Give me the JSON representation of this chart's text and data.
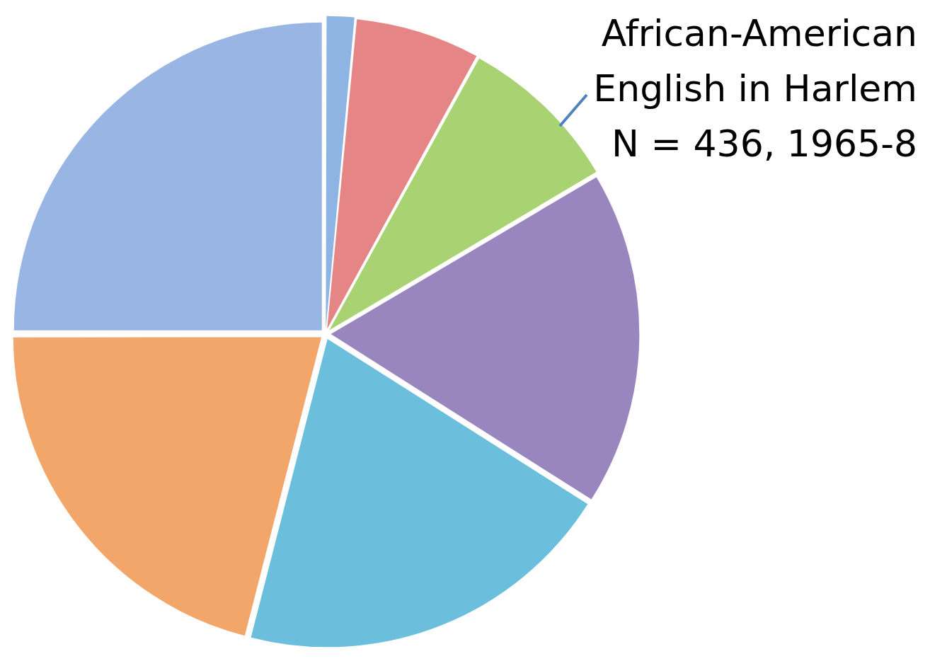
{
  "chart_data": {
    "type": "pie",
    "title": "African-American\nEnglish in Harlem\nN = 436, 1965-8",
    "categories": [
      null,
      null,
      null,
      null,
      null,
      null,
      null
    ],
    "values": [
      1.5,
      6.5,
      8.5,
      17.5,
      20,
      21,
      25
    ],
    "colors": [
      "#8eb4e3",
      "#e58585",
      "#a9d273",
      "#9a86be",
      "#6cbfdc",
      "#f3a66a",
      "#99b5e3"
    ]
  }
}
